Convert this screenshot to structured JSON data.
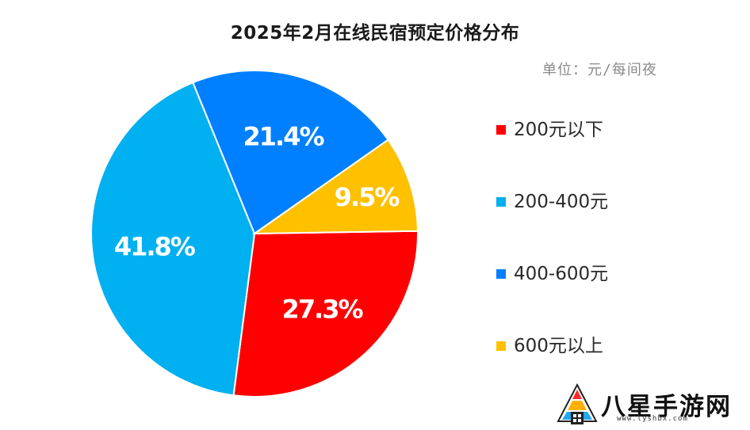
{
  "chart_data": {
    "type": "pie",
    "title": "2025年2月在线民宿预定价格分布",
    "unit_note": "单位：元/每间夜",
    "slices": [
      {
        "label": "200元以下",
        "value": 27.3,
        "display": "27.3%",
        "color": "#ff0000"
      },
      {
        "label": "200-400元",
        "value": 41.8,
        "display": "41.8%",
        "color": "#00b0f0"
      },
      {
        "label": "400-600元",
        "value": 21.4,
        "display": "21.4%",
        "color": "#0080ff"
      },
      {
        "label": "600元以上",
        "value": 9.5,
        "display": "9.5%",
        "color": "#ffc000"
      }
    ],
    "legend_position": "right"
  },
  "watermark": {
    "text": "八星手游网",
    "url": "www.lyshbx.com"
  }
}
